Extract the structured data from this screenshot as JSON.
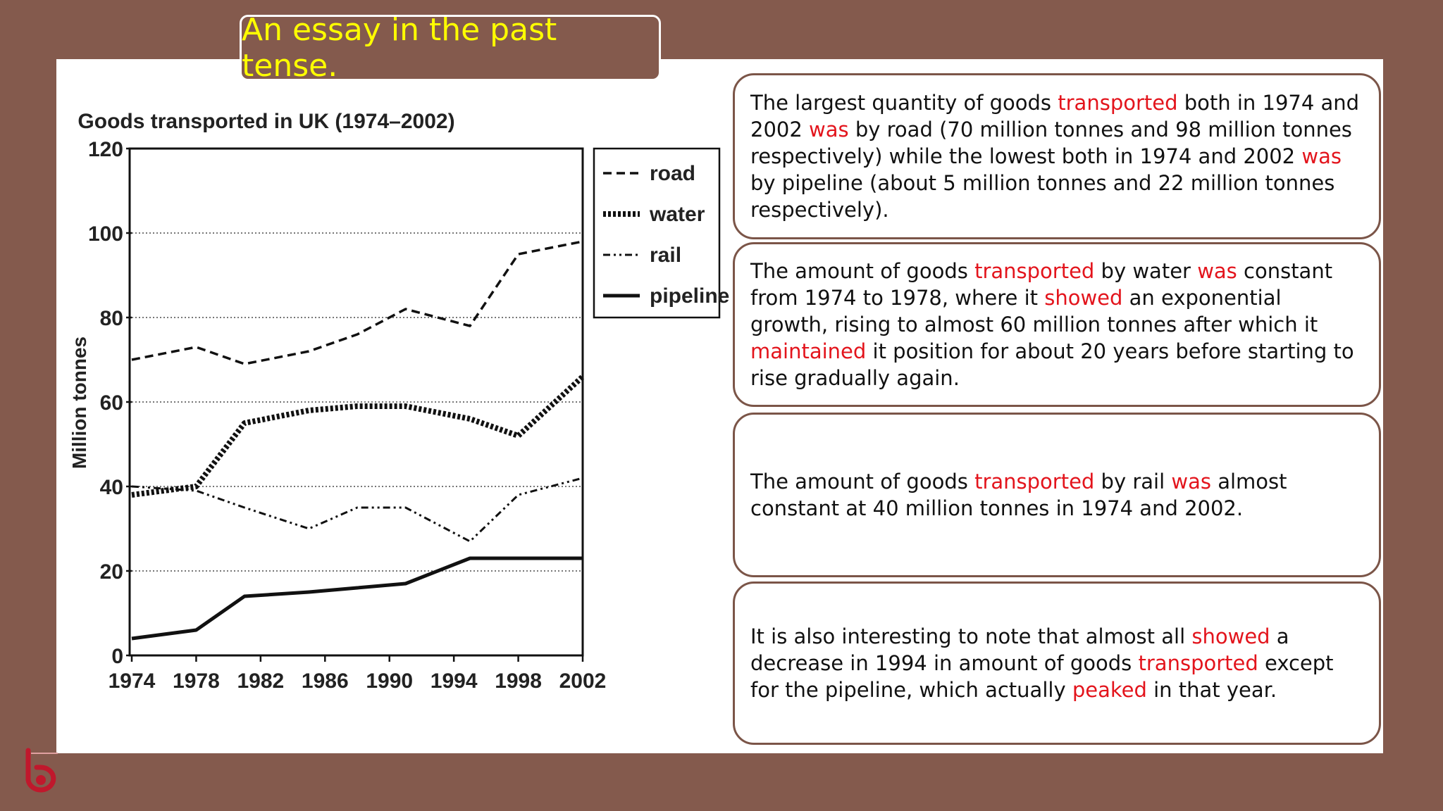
{
  "slide": {
    "title": "An essay in the past tense.",
    "colors": {
      "background": "#845a4d",
      "highlight": "#e3141c",
      "title_text": "#ffff00"
    }
  },
  "chart_data": {
    "type": "line",
    "title": "Goods transported in UK (1974–2002)",
    "xlabel": "",
    "ylabel": "Million tonnes",
    "x": [
      1974,
      1978,
      1981,
      1985,
      1988,
      1991,
      1995,
      1998,
      2002
    ],
    "xticks": [
      "1974",
      "1978",
      "1982",
      "1986",
      "1990",
      "1994",
      "1998",
      "2002"
    ],
    "yticks": [
      "0",
      "20",
      "40",
      "60",
      "80",
      "100",
      "120"
    ],
    "ylim": [
      0,
      120
    ],
    "xlim": [
      1974,
      2002
    ],
    "grid": "horizontal dotted",
    "legend": "top-right",
    "series": [
      {
        "name": "road",
        "values": [
          70,
          73,
          69,
          72,
          76,
          82,
          78,
          95,
          98
        ]
      },
      {
        "name": "water",
        "values": [
          38,
          40,
          55,
          58,
          59,
          59,
          56,
          52,
          66
        ]
      },
      {
        "name": "rail",
        "values": [
          40,
          39,
          35,
          30,
          35,
          35,
          27,
          38,
          42
        ]
      },
      {
        "name": "pipeline",
        "values": [
          4,
          6,
          14,
          15,
          16,
          17,
          23,
          23,
          23
        ]
      }
    ]
  },
  "essay": [
    [
      {
        "t": "The largest quantity of goods "
      },
      {
        "t": "transported",
        "hl": true
      },
      {
        "t": " both in 1974 and 2002 "
      },
      {
        "t": "was",
        "hl": true
      },
      {
        "t": " by road (70 million tonnes and 98 million tonnes respectively) while the lowest both in 1974 and 2002 "
      },
      {
        "t": "was",
        "hl": true
      },
      {
        "t": " by pipeline (about 5 million tonnes and 22 million tonnes respectively)."
      }
    ],
    [
      {
        "t": "The amount of goods "
      },
      {
        "t": "transported",
        "hl": true
      },
      {
        "t": " by water "
      },
      {
        "t": "was",
        "hl": true
      },
      {
        "t": " constant from 1974 to 1978, where it "
      },
      {
        "t": "showed",
        "hl": true
      },
      {
        "t": " an exponential growth, rising to almost 60 million tonnes after which it "
      },
      {
        "t": "maintained",
        "hl": true
      },
      {
        "t": " it position for about 20 years before starting to rise gradually again."
      }
    ],
    [
      {
        "t": "The amount of goods "
      },
      {
        "t": "transported",
        "hl": true
      },
      {
        "t": " by rail "
      },
      {
        "t": "was",
        "hl": true
      },
      {
        "t": " almost constant at 40 million tonnes in 1974 and 2002."
      }
    ],
    [
      {
        "t": "It is also interesting to note that almost all "
      },
      {
        "t": "showed",
        "hl": true
      },
      {
        "t": " a decrease in 1994 in amount of goods "
      },
      {
        "t": "transported",
        "hl": true
      },
      {
        "t": " except for the pipeline, which actually "
      },
      {
        "t": "peaked",
        "hl": true
      },
      {
        "t": " in that year."
      }
    ]
  ]
}
